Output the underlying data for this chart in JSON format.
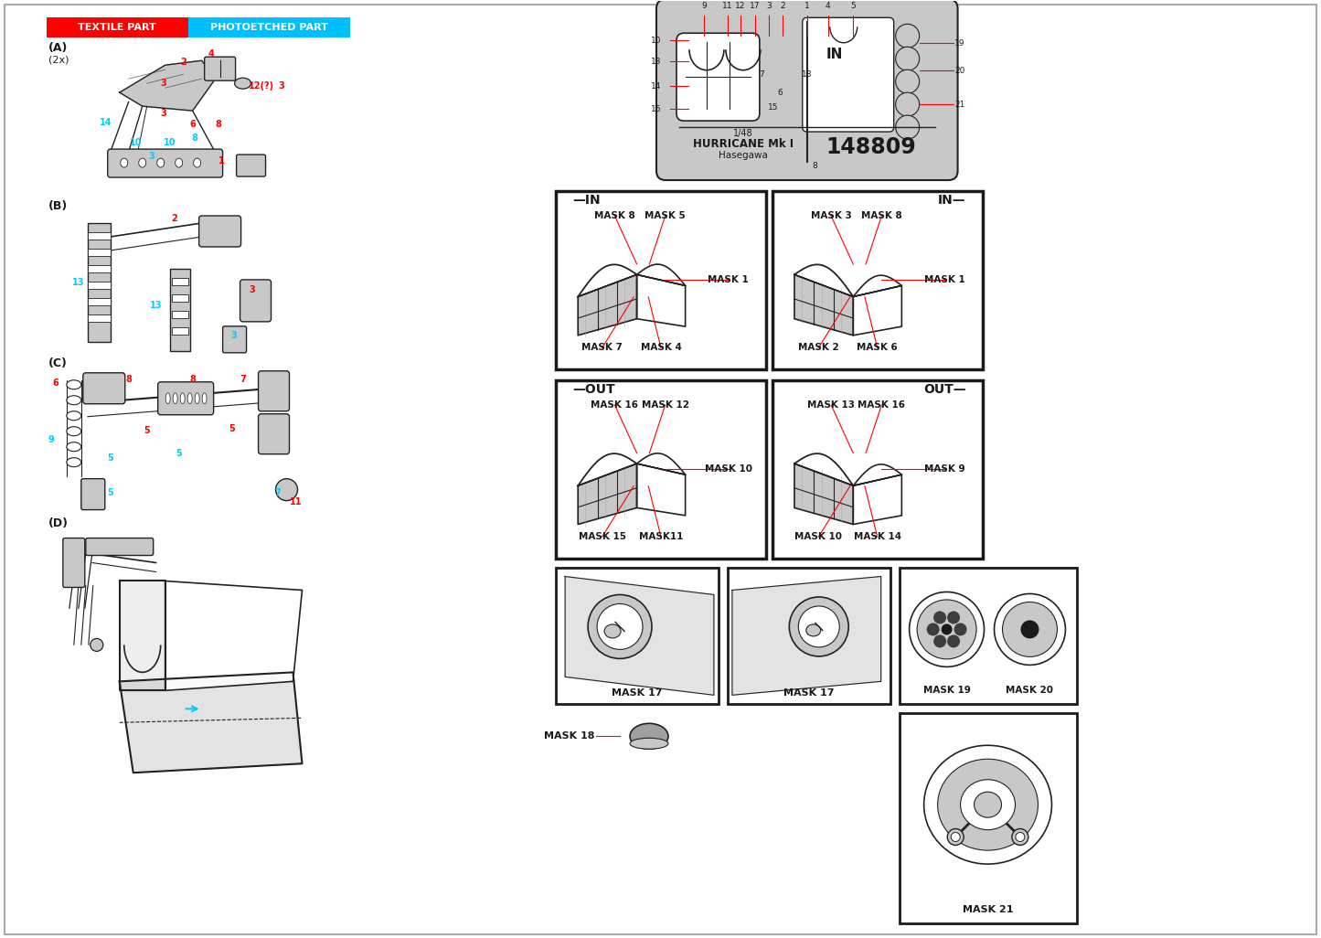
{
  "bg_color": "#ffffff",
  "legend_red_text": "TEXTILE PART",
  "legend_cyan_text": "PHOTOETCHED PART",
  "legend_red_bg": "#ff0000",
  "legend_cyan_bg": "#00bfff",
  "legend_text_color": "#ffffff",
  "product_code": "148809",
  "product_name": "HURRICANE Mk I",
  "scale": "1/48",
  "manufacturer": "Hasegawa",
  "red_color": "#ff0000",
  "cyan_color": "#00ccff",
  "dark_color": "#1a1a1a",
  "light_gray": "#c8c8c8",
  "mid_gray": "#a0a0a0",
  "line_color": "#222222",
  "mask_in_left": {
    "label": "IN",
    "top_labels": [
      "MASK 8",
      "MASK 5"
    ],
    "bottom_labels": [
      "MASK 7",
      "MASK 4"
    ],
    "right_label": "MASK 1"
  },
  "mask_in_right": {
    "label": "IN",
    "top_labels": [
      "MASK 3",
      "MASK 8"
    ],
    "bottom_labels": [
      "MASK 2",
      "MASK 6"
    ],
    "right_label": "MASK 1"
  },
  "mask_out_left": {
    "label": "OUT",
    "top_labels": [
      "MASK 16",
      "MASK 12"
    ],
    "bottom_labels": [
      "MASK 15",
      "MASK11"
    ],
    "right_label": "MASK 10"
  },
  "mask_out_right": {
    "label": "OUT",
    "top_labels": [
      "MASK 13",
      "MASK 16"
    ],
    "bottom_labels": [
      "MASK 10",
      "MASK 14"
    ],
    "right_label": "MASK 9"
  },
  "mask18_label": "MASK 18",
  "mask21_label": "MASK 21",
  "mask17_label": "MASK 17",
  "mask19_label": "MASK 19",
  "mask20_label": "MASK 20"
}
